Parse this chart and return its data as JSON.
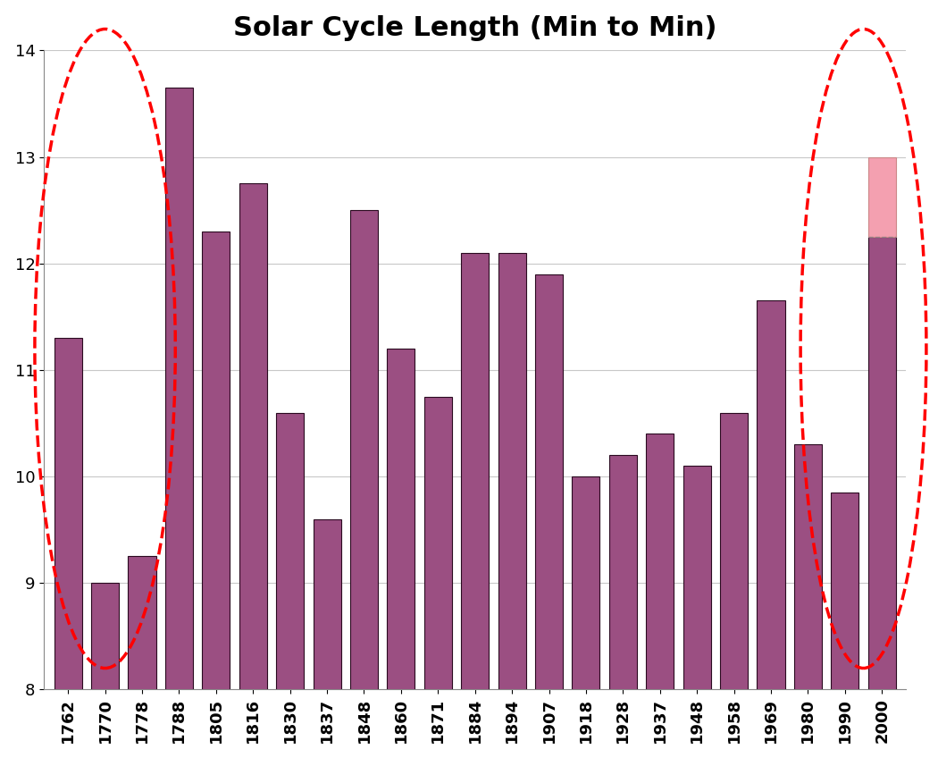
{
  "title": "Solar Cycle Length (Min to Min)",
  "categories": [
    "1762",
    "1770",
    "1778",
    "1788",
    "1805",
    "1816",
    "1830",
    "1837",
    "1848",
    "1860",
    "1871",
    "1884",
    "1894",
    "1907",
    "1918",
    "1928",
    "1937",
    "1948",
    "1958",
    "1969",
    "1980",
    "1990",
    "2000"
  ],
  "values": [
    11.3,
    9.0,
    9.25,
    13.65,
    12.3,
    12.75,
    10.6,
    9.6,
    12.5,
    11.2,
    10.75,
    12.1,
    12.1,
    11.9,
    10.0,
    10.2,
    10.4,
    10.1,
    10.6,
    11.65,
    10.3,
    9.85,
    12.25
  ],
  "value_2000_pink": 0.75,
  "bar_color": "#9B4F82",
  "bar_color_edge": "#2a0a20",
  "bar_color_pink": "#F4A0B0",
  "ylim": [
    8,
    14
  ],
  "yticks": [
    8,
    9,
    10,
    11,
    12,
    13,
    14
  ],
  "background_color": "#ffffff",
  "grid_color": "#c8c8c8",
  "title_fontsize": 22,
  "tick_fontsize": 13
}
